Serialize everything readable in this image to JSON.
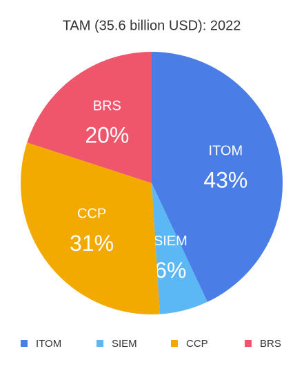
{
  "chart_data": {
    "type": "pie",
    "title": "TAM (35.6 billion USD): 2022",
    "categories": [
      "ITOM",
      "SIEM",
      "CCP",
      "BRS"
    ],
    "values": [
      43,
      6,
      31,
      20
    ],
    "value_labels": [
      "43%",
      "6%",
      "31%",
      "20%"
    ],
    "colors": [
      "#4a7de6",
      "#5bb8f5",
      "#f2a900",
      "#f0566b"
    ],
    "legend": "bottom"
  }
}
